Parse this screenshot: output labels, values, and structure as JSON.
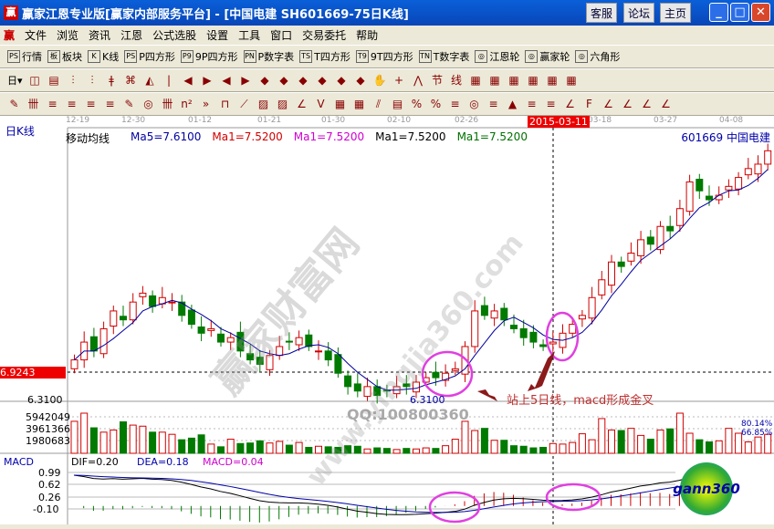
{
  "title": "赢家江恩专业版[赢家内部服务平台] - [中国电建    SH601669-75日K线]",
  "title_buttons": [
    "客服",
    "论坛",
    "主页"
  ],
  "menu": [
    "文件",
    "浏览",
    "资讯",
    "江恩",
    "公式选股",
    "设置",
    "工具",
    "窗口",
    "交易委托",
    "帮助"
  ],
  "toolbar1": [
    {
      "icon": "PS",
      "label": "行情"
    },
    {
      "icon": "板",
      "label": "板块"
    },
    {
      "icon": "K",
      "label": "K线"
    },
    {
      "icon": "PS",
      "label": "P四方形"
    },
    {
      "icon": "P9",
      "label": "9P四方形"
    },
    {
      "icon": "PN",
      "label": "P数字表"
    },
    {
      "icon": "TS",
      "label": "T四方形"
    },
    {
      "icon": "T9",
      "label": "9T四方形"
    },
    {
      "icon": "TN",
      "label": "T数字表"
    },
    {
      "icon": "◎",
      "label": "江恩轮"
    },
    {
      "icon": "◎",
      "label": "赢家轮"
    },
    {
      "icon": "◎",
      "label": "六角形"
    }
  ],
  "period_label": "日",
  "chart": {
    "panel_label": "日K线",
    "dates": [
      "12-19",
      "12-30",
      "01-12",
      "01-21",
      "01-30",
      "02-10",
      "02-26",
      "03-18",
      "03-27",
      "04-08"
    ],
    "cursor_date": "2015-03-11",
    "indicator_name": "移动均线",
    "ma": [
      {
        "text": "Ma5=7.6100",
        "color": "#0000a0"
      },
      {
        "text": "Ma1=7.5200",
        "color": "#d00000"
      },
      {
        "text": "Ma1=7.5200",
        "color": "#d000d0"
      },
      {
        "text": "Ma1=7.5200",
        "color": "#000000"
      },
      {
        "text": "Ma1=7.5200",
        "color": "#007000"
      }
    ],
    "stock": "601669  中国电建",
    "cursor_price": "6.9243",
    "low_price_axis": "6.3100",
    "low_price_mark": "6.3100",
    "annotation": "站上5日线，macd形成金叉",
    "watermark_qq": "QQ:100800360",
    "watermark_site": "www.yingjia360.com",
    "watermark_brand": "赢家财富网",
    "volume_ticks": [
      "5942049",
      "3961366",
      "1980683"
    ],
    "volume_pct": [
      "80.14%",
      "66.85%"
    ],
    "macd_label": "MACD",
    "dif": "DIF=0.20",
    "dea": "DEA=0.18",
    "macd": "MACD=0.04",
    "macd_ticks": [
      "0.99",
      "0.62",
      "0.26",
      "-0.10"
    ],
    "logo": "gann360",
    "colors": {
      "up": "#d00000",
      "down": "#007a00",
      "ma5": "#0000a0",
      "cursor": "#e00000"
    }
  },
  "chart_data": {
    "type": "candlestick",
    "close": [
      7.2,
      7.6,
      7.4,
      7.9,
      8.3,
      8.1,
      8.5,
      8.7,
      8.4,
      8.6,
      8.5,
      8.2,
      8.0,
      7.8,
      7.9,
      7.6,
      7.7,
      7.4,
      7.2,
      7.1,
      7.3,
      7.5,
      7.6,
      7.7,
      7.5,
      7.4,
      7.2,
      6.9,
      6.6,
      6.5,
      6.6,
      6.4,
      6.5,
      6.6,
      6.6,
      6.7,
      6.8,
      6.8,
      6.9,
      7.0,
      7.5,
      8.3,
      8.2,
      8.3,
      8.1,
      7.9,
      7.7,
      7.6,
      7.5,
      7.6,
      7.8,
      8.0,
      8.2,
      8.6,
      9.0,
      9.4,
      9.3,
      9.6,
      9.9,
      9.8,
      10.2,
      10.1,
      10.6,
      11.2,
      11.0,
      10.8,
      10.9,
      11.1,
      11.3,
      11.5,
      11.6,
      11.9
    ],
    "volume": [
      5.9,
      7.4,
      4.7,
      3.9,
      4.3,
      5.8,
      5.2,
      5.0,
      3.9,
      3.9,
      3.5,
      2.5,
      2.8,
      3.4,
      1.7,
      1.2,
      2.6,
      1.8,
      1.9,
      2.3,
      1.9,
      2.2,
      1.5,
      2.0,
      1.1,
      1.3,
      1.2,
      1.1,
      1.4,
      1.3,
      0.8,
      1.0,
      0.9,
      0.7,
      0.9,
      0.8,
      1.0,
      0.9,
      1.4,
      2.6,
      5.9,
      4.2,
      4.6,
      2.4,
      2.4,
      1.4,
      1.3,
      1.0,
      1.1,
      1.8,
      1.7,
      2.0,
      3.6,
      2.5,
      6.4,
      4.3,
      4.2,
      4.6,
      3.3,
      2.6,
      4.3,
      4.5,
      7.4,
      3.7,
      2.5,
      2.1,
      2.3,
      4.6,
      3.7,
      2.1,
      3.0,
      3.5
    ]
  }
}
